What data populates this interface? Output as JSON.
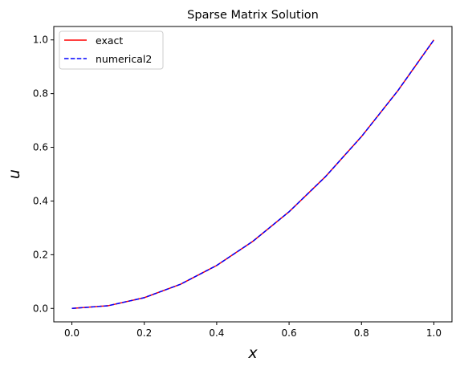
{
  "chart_data": {
    "type": "line",
    "title": "Sparse Matrix Solution",
    "xlabel": "x",
    "ylabel": "u",
    "xlim": [
      -0.05,
      1.05
    ],
    "ylim": [
      -0.05,
      1.05
    ],
    "xticks": [
      0.0,
      0.2,
      0.4,
      0.6,
      0.8,
      1.0
    ],
    "xtick_labels": [
      "0.0",
      "0.2",
      "0.4",
      "0.6",
      "0.8",
      "1.0"
    ],
    "yticks": [
      0.0,
      0.2,
      0.4,
      0.6,
      0.8,
      1.0
    ],
    "ytick_labels": [
      "0.0",
      "0.2",
      "0.4",
      "0.6",
      "0.8",
      "1.0"
    ],
    "grid": false,
    "legend_position": "top-left",
    "x": [
      0.0,
      0.1,
      0.2,
      0.3,
      0.4,
      0.5,
      0.6,
      0.7,
      0.8,
      0.9,
      1.0
    ],
    "series": [
      {
        "name": "exact",
        "color": "#ff0000",
        "linestyle": "solid",
        "values": [
          0.0,
          0.01,
          0.04,
          0.09,
          0.16,
          0.25,
          0.36,
          0.49,
          0.64,
          0.81,
          1.0
        ]
      },
      {
        "name": "numerical2",
        "color": "#0000ff",
        "linestyle": "dashed",
        "values": [
          0.0,
          0.01,
          0.04,
          0.09,
          0.16,
          0.25,
          0.36,
          0.49,
          0.64,
          0.81,
          1.0
        ]
      }
    ]
  }
}
